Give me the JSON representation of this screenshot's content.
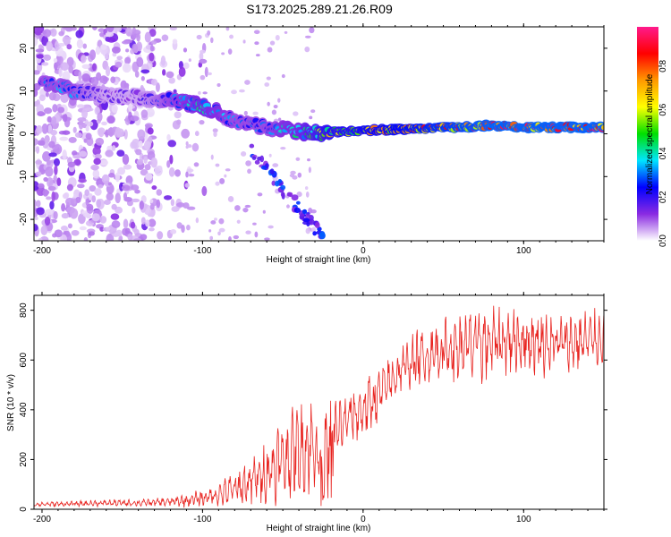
{
  "figure_title": "S173.2025.289.21.26.R09",
  "chart_data": [
    {
      "type": "heatmap",
      "title": "S173.2025.289.21.26.R09",
      "xlabel": "Height of straight line (km)",
      "ylabel": "Frequency (Hz)",
      "xlim": [
        -205,
        150
      ],
      "ylim": [
        -25,
        25
      ],
      "xticks": [
        -200,
        -100,
        0,
        100
      ],
      "yticks": [
        -20,
        -10,
        0,
        10,
        20
      ],
      "colorbar": {
        "label": "Normalized spectral amplitude",
        "range": [
          0.0,
          0.98
        ],
        "ticks": [
          0.0,
          0.2,
          0.4,
          0.6,
          0.8
        ],
        "colors": [
          "#ffffff",
          "#8a2be2",
          "#0000ff",
          "#00e5ff",
          "#00e000",
          "#ffff00",
          "#ff9900",
          "#ff0000",
          "#ff1a8c"
        ]
      },
      "ridge": {
        "description": "main frequency track vs height",
        "x": [
          -195,
          -180,
          -160,
          -140,
          -120,
          -100,
          -90,
          -80,
          -70,
          -60,
          -50,
          -40,
          -30,
          -20,
          -10,
          0,
          20,
          40,
          60,
          80,
          100,
          120,
          150
        ],
        "freq": [
          12,
          10,
          9,
          8.5,
          8,
          6.5,
          5,
          3,
          2,
          1.5,
          1,
          0.5,
          0.3,
          0.3,
          0.5,
          0.8,
          1,
          1.3,
          1.5,
          2,
          1.5,
          1.5,
          1.5
        ],
        "amplitude": [
          0.3,
          0.3,
          0.15,
          0.15,
          0.3,
          0.4,
          0.35,
          0.3,
          0.3,
          0.3,
          0.35,
          0.4,
          0.5,
          0.6,
          0.6,
          0.65,
          0.7,
          0.75,
          0.8,
          0.85,
          0.85,
          0.85,
          0.85
        ]
      }
    },
    {
      "type": "line",
      "xlabel": "Height of straight line (km)",
      "ylabel": "SNR (10 * v/v)",
      "xlim": [
        -205,
        150
      ],
      "ylim": [
        0,
        860
      ],
      "xticks": [
        -200,
        -100,
        0,
        100
      ],
      "yticks": [
        0,
        200,
        400,
        600,
        800
      ],
      "color": "#e8231f",
      "series": [
        {
          "name": "SNR",
          "x": [
            -205,
            -180,
            -160,
            -140,
            -120,
            -110,
            -100,
            -90,
            -80,
            -70,
            -60,
            -50,
            -40,
            -30,
            -25,
            -20,
            -15,
            -10,
            -5,
            0,
            5,
            10,
            15,
            20,
            25,
            30,
            40,
            50,
            60,
            70,
            80,
            90,
            100,
            110,
            120,
            130,
            140,
            150
          ],
          "mean": [
            20,
            22,
            25,
            25,
            30,
            35,
            45,
            60,
            80,
            110,
            150,
            200,
            240,
            260,
            200,
            280,
            320,
            360,
            380,
            400,
            430,
            460,
            500,
            540,
            570,
            590,
            620,
            640,
            650,
            660,
            670,
            680,
            680,
            670,
            665,
            670,
            680,
            690
          ],
          "spread": [
            10,
            12,
            15,
            15,
            20,
            30,
            40,
            50,
            80,
            110,
            150,
            180,
            200,
            220,
            200,
            200,
            160,
            150,
            140,
            130,
            130,
            120,
            110,
            110,
            110,
            120,
            130,
            150,
            160,
            170,
            170,
            160,
            160,
            150,
            140,
            130,
            130,
            120
          ]
        }
      ]
    }
  ]
}
